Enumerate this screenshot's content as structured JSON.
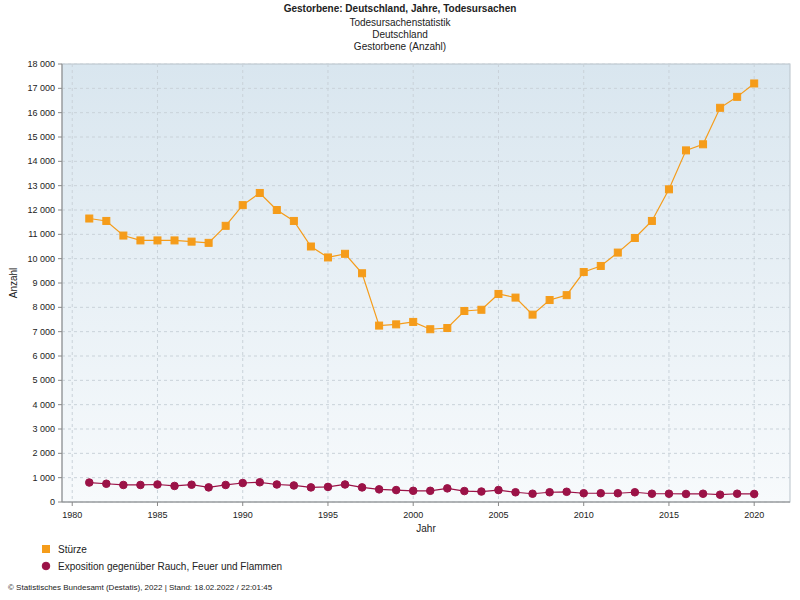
{
  "chart_data": {
    "type": "line",
    "title": "Gestorbene: Deutschland, Jahre, Todesursachen",
    "subtitle": [
      "Todesursachenstatistik",
      "Deutschland",
      "Gestorbene (Anzahl)"
    ],
    "x_label": "Jahr",
    "y_label": "Anzahl",
    "source": "© Statistisches Bundesamt (Destatis), 2022 | Stand: 18.02.2022 / 22:01:45",
    "x": [
      1981,
      1982,
      1983,
      1984,
      1985,
      1986,
      1987,
      1988,
      1989,
      1990,
      1991,
      1992,
      1993,
      1994,
      1995,
      1996,
      1997,
      1998,
      1999,
      2000,
      2001,
      2002,
      2003,
      2004,
      2005,
      2006,
      2007,
      2008,
      2009,
      2010,
      2011,
      2012,
      2013,
      2014,
      2015,
      2016,
      2017,
      2018,
      2019,
      2020
    ],
    "series": [
      {
        "name": "Stürze",
        "color": "#f59c1a",
        "marker": "square",
        "values": [
          11650,
          11550,
          10950,
          10750,
          10750,
          10750,
          10700,
          10650,
          11350,
          12200,
          12700,
          12000,
          11550,
          10500,
          10050,
          10200,
          9400,
          7250,
          7300,
          7400,
          7100,
          7150,
          7850,
          7900,
          8550,
          8400,
          7700,
          8300,
          8500,
          9450,
          9700,
          10250,
          10850,
          11550,
          12850,
          14450,
          14700,
          16200,
          16650,
          17200
        ]
      },
      {
        "name": "Exposition gegenüber Rauch, Feuer und Flammen",
        "color": "#9b1247",
        "marker": "circle",
        "values": [
          800,
          750,
          700,
          700,
          720,
          660,
          710,
          600,
          700,
          780,
          810,
          720,
          680,
          600,
          620,
          720,
          600,
          520,
          490,
          460,
          460,
          560,
          450,
          430,
          490,
          400,
          340,
          400,
          420,
          360,
          360,
          360,
          400,
          340,
          340,
          330,
          340,
          300,
          340,
          330
        ]
      }
    ],
    "xlim": [
      1979.4,
      2022.1
    ],
    "xticks": [
      1980,
      1985,
      1990,
      1995,
      2000,
      2005,
      2010,
      2015,
      2020
    ],
    "ylim": [
      0,
      18000
    ],
    "yticks": [
      0,
      {
        "value": 1000,
        "label": "1 000"
      },
      {
        "value": 2000,
        "label": "2 000"
      },
      {
        "value": 3000,
        "label": "3 000"
      },
      {
        "value": 4000,
        "label": "4 000"
      },
      {
        "value": 5000,
        "label": "5 000"
      },
      {
        "value": 6000,
        "label": "6 000"
      },
      {
        "value": 7000,
        "label": "7 000"
      },
      {
        "value": 8000,
        "label": "8 000"
      },
      {
        "value": 9000,
        "label": "9 000"
      },
      {
        "value": 10000,
        "label": "10 000"
      },
      {
        "value": 11000,
        "label": "11 000"
      },
      {
        "value": 12000,
        "label": "12 000"
      },
      {
        "value": 13000,
        "label": "13 000"
      },
      {
        "value": 14000,
        "label": "14 000"
      },
      {
        "value": 15000,
        "label": "15 000"
      },
      {
        "value": 16000,
        "label": "16 000"
      },
      {
        "value": 17000,
        "label": "17 000"
      },
      {
        "value": 18000,
        "label": "18 000"
      }
    ],
    "grid": true,
    "legend": "bottom-left"
  }
}
